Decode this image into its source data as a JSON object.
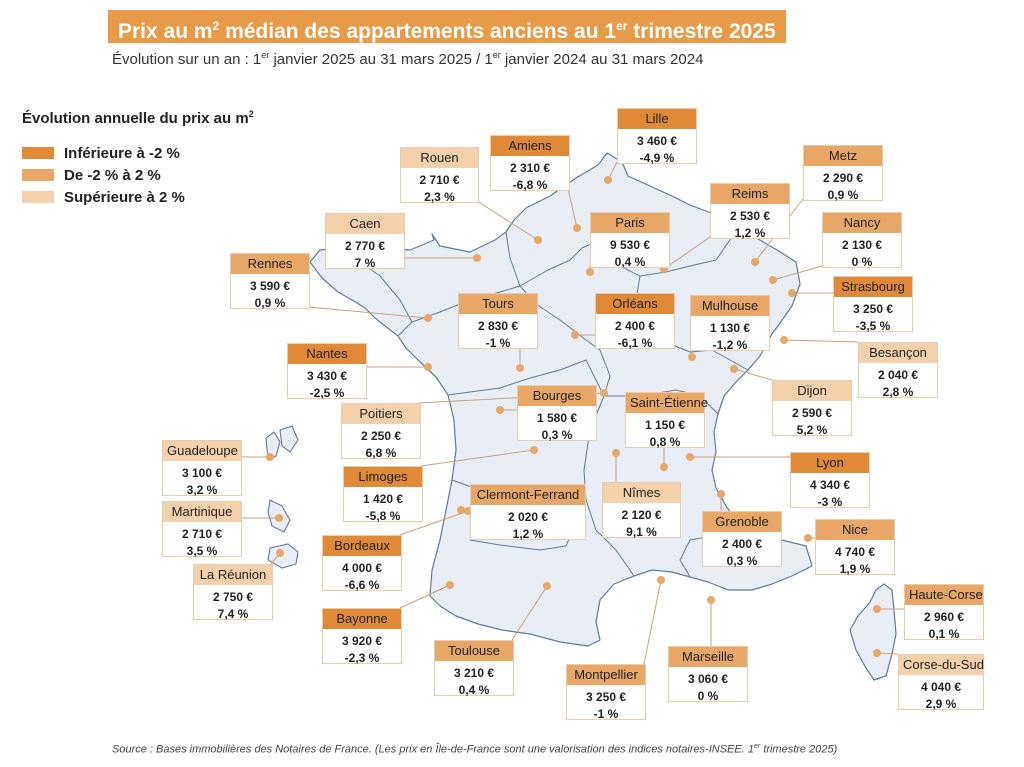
{
  "header": {
    "title_pre": "Prix au m",
    "title_sup2": "2",
    "title_mid": " médian des appartements anciens au 1",
    "title_sup_er": "er",
    "title_post": " trimestre 2025",
    "subtitle_a": "Évolution sur un an : 1",
    "subtitle_sup_a": "er",
    "subtitle_b": " janvier 2025 au 31 mars 2025 / 1",
    "subtitle_sup_b": "er",
    "subtitle_c": " janvier 2024 au 31 mars 2024"
  },
  "legend": {
    "title": "Évolution annuelle du prix au m",
    "title_sup": "2",
    "items": [
      {
        "label": "Inférieure à -2 %",
        "color": "#e08a37"
      },
      {
        "label": "De -2 % à 2 %",
        "color": "#e8a767"
      },
      {
        "label": "Supérieure à 2 %",
        "color": "#f4d1ab"
      }
    ]
  },
  "colors": {
    "dark": "#e08a37",
    "mid": "#e8a767",
    "light": "#f4d1ab",
    "map_fill": "#e9edf5",
    "map_border": "#5f7a9c",
    "dot": "#e8a767",
    "leader": "#c8a17c"
  },
  "cities": [
    {
      "name": "Lille",
      "price": "3 460 €",
      "change": "-4,9 %",
      "tier": "dark"
    },
    {
      "name": "Amiens",
      "price": "2 310 €",
      "change": "-6,8 %",
      "tier": "dark"
    },
    {
      "name": "Rouen",
      "price": "2 710 €",
      "change": "2,3 %",
      "tier": "light"
    },
    {
      "name": "Metz",
      "price": "2 290 €",
      "change": "0,9 %",
      "tier": "mid"
    },
    {
      "name": "Reims",
      "price": "2 530 €",
      "change": "1,2 %",
      "tier": "mid"
    },
    {
      "name": "Caen",
      "price": "2 770 €",
      "change": "7 %",
      "tier": "light"
    },
    {
      "name": "Paris",
      "price": "9 530 €",
      "change": "0,4 %",
      "tier": "mid"
    },
    {
      "name": "Nancy",
      "price": "2 130 €",
      "change": "0 %",
      "tier": "mid"
    },
    {
      "name": "Rennes",
      "price": "3 590 €",
      "change": "0,9 %",
      "tier": "mid"
    },
    {
      "name": "Strasbourg",
      "price": "3 250 €",
      "change": "-3,5 %",
      "tier": "dark"
    },
    {
      "name": "Tours",
      "price": "2 830 €",
      "change": "-1 %",
      "tier": "mid"
    },
    {
      "name": "Orléans",
      "price": "2 400 €",
      "change": "-6,1 %",
      "tier": "dark"
    },
    {
      "name": "Mulhouse",
      "price": "1 130 €",
      "change": "-1,2 %",
      "tier": "mid"
    },
    {
      "name": "Nantes",
      "price": "3 430 €",
      "change": "-2,5 %",
      "tier": "dark"
    },
    {
      "name": "Besançon",
      "price": "2 040 €",
      "change": "2,8 %",
      "tier": "light"
    },
    {
      "name": "Bourges",
      "price": "1 580 €",
      "change": "0,3 %",
      "tier": "mid"
    },
    {
      "name": "Dijon",
      "price": "2 590 €",
      "change": "5,2 %",
      "tier": "light"
    },
    {
      "name": "Poitiers",
      "price": "2 250 €",
      "change": "6,8 %",
      "tier": "light"
    },
    {
      "name": "Saint-Étienne",
      "price": "1 150 €",
      "change": "0,8 %",
      "tier": "mid"
    },
    {
      "name": "Guadeloupe",
      "price": "3 100 €",
      "change": "3,2 %",
      "tier": "light"
    },
    {
      "name": "Limoges",
      "price": "1 420 €",
      "change": "-5,8 %",
      "tier": "dark"
    },
    {
      "name": "Lyon",
      "price": "4 340 €",
      "change": "-3 %",
      "tier": "dark"
    },
    {
      "name": "Clermont-Ferrand",
      "price": "2 020 €",
      "change": "1,2 %",
      "tier": "mid"
    },
    {
      "name": "Nîmes",
      "price": "2 120 €",
      "change": "9,1 %",
      "tier": "light"
    },
    {
      "name": "Martinique",
      "price": "2 710 €",
      "change": "3,5 %",
      "tier": "light"
    },
    {
      "name": "Grenoble",
      "price": "2 400 €",
      "change": "0,3 %",
      "tier": "mid"
    },
    {
      "name": "Nice",
      "price": "4 740 €",
      "change": "1,9 %",
      "tier": "mid"
    },
    {
      "name": "Bordeaux",
      "price": "4 000 €",
      "change": "-6,6 %",
      "tier": "dark"
    },
    {
      "name": "La Réunion",
      "price": "2 750 €",
      "change": "7,4 %",
      "tier": "light"
    },
    {
      "name": "Haute-Corse",
      "price": "2 960 €",
      "change": "0,1 %",
      "tier": "mid"
    },
    {
      "name": "Bayonne",
      "price": "3 920 €",
      "change": "-2,3 %",
      "tier": "dark"
    },
    {
      "name": "Toulouse",
      "price": "3 210 €",
      "change": "0,4 %",
      "tier": "mid"
    },
    {
      "name": "Marseille",
      "price": "3 060 €",
      "change": "0 %",
      "tier": "mid"
    },
    {
      "name": "Corse-du-Sud",
      "price": "4 040 €",
      "change": "2,9 %",
      "tier": "light"
    },
    {
      "name": "Montpellier",
      "price": "3 250 €",
      "change": "-1 %",
      "tier": "mid"
    }
  ],
  "source": {
    "text_a": "Source : Bases immobilières des Notaires de France. (Les prix en Île-de-France sont une valorisation des indices notaires-INSEE. 1",
    "sup": "er",
    "text_b": " trimestre 2025)"
  }
}
